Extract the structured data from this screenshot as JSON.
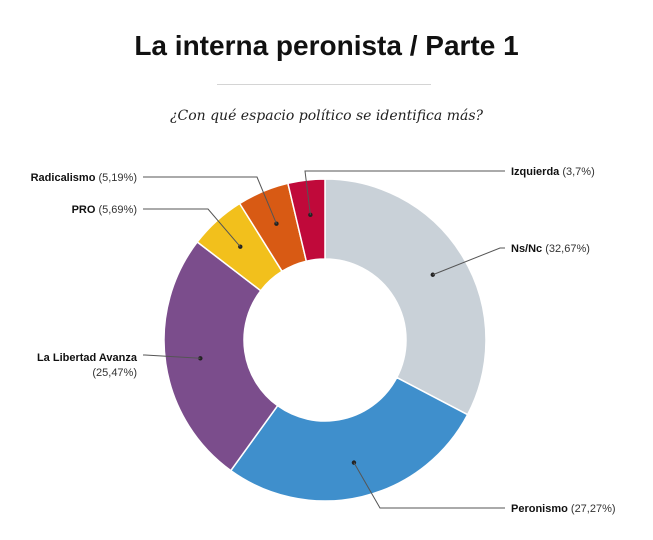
{
  "header": {
    "title": "La interna peronista / Parte 1",
    "subtitle": "¿Con qué espacio político se identifica más?"
  },
  "chart_data": {
    "type": "pie",
    "style": "donut",
    "title": "La interna peronista / Parte 1",
    "subtitle": "¿Con qué espacio político se identifica más?",
    "slices": [
      {
        "label": "Ns/Nc",
        "value": 32.67,
        "value_text": "(32,67%)",
        "color": "#c9d1d8"
      },
      {
        "label": "Peronismo",
        "value": 27.27,
        "value_text": "(27,27%)",
        "color": "#3f8fcc"
      },
      {
        "label": "La Libertad Avanza",
        "value": 25.47,
        "value_text": "(25,47%)",
        "color": "#7b4d8c"
      },
      {
        "label": "PRO",
        "value": 5.69,
        "value_text": "(5,69%)",
        "color": "#f2c01c"
      },
      {
        "label": "Radicalismo",
        "value": 5.19,
        "value_text": "(5,19%)",
        "color": "#d85a14"
      },
      {
        "label": "Izquierda",
        "value": 3.7,
        "value_text": "(3,7%)",
        "color": "#c0093a"
      }
    ],
    "legend": "callout-labels"
  }
}
